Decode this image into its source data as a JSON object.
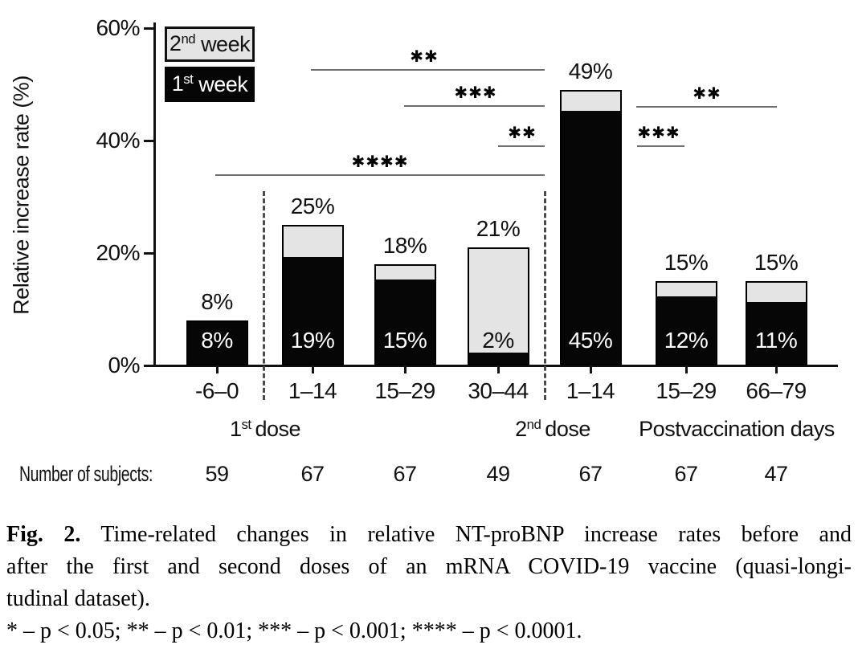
{
  "figure": {
    "ylabel": "Relative increase rate (%)",
    "legend": {
      "second_week": {
        "base": "2",
        "sup": "nd",
        "rest": "week",
        "fill": "#e4e4e4"
      },
      "first_week": {
        "base": "1",
        "sup": "st",
        "rest": "week",
        "fill": "#060606"
      }
    },
    "dose1": {
      "base": "1",
      "sup": "st",
      "rest": "dose"
    },
    "dose2": {
      "base": "2",
      "sup": "nd",
      "rest": "dose"
    },
    "postvaccination_label": "Postvaccination days",
    "subjects_label": "Number of subjects:"
  },
  "chart_data": {
    "type": "bar",
    "stacked": true,
    "title": "",
    "xlabel": "",
    "ylabel": "Relative increase rate (%)",
    "ylim": [
      0,
      60
    ],
    "grid": false,
    "legend_position": "top-left",
    "yticks": [
      {
        "value": 0,
        "label": "0%"
      },
      {
        "value": 20,
        "label": "20%"
      },
      {
        "value": 40,
        "label": "40%"
      },
      {
        "value": 60,
        "label": "60%"
      }
    ],
    "categories": [
      "-6–0",
      "1–14",
      "15–29",
      "30–44",
      "1–14",
      "15–29",
      "66–79"
    ],
    "group_labels": [
      "1st dose",
      "2nd dose",
      "Postvaccination days"
    ],
    "series": [
      {
        "name": "1st week",
        "color": "#060606",
        "values": [
          8,
          19,
          15,
          2,
          45,
          12,
          11
        ]
      },
      {
        "name": "2nd week",
        "color": "#e4e4e4",
        "values": [
          0,
          6,
          3,
          19,
          4,
          3,
          4
        ]
      }
    ],
    "totals": [
      8,
      25,
      18,
      21,
      49,
      15,
      15
    ],
    "total_labels": [
      "8%",
      "25%",
      "18%",
      "21%",
      "49%",
      "15%",
      "15%"
    ],
    "inner_labels": [
      "8%",
      "19%",
      "15%",
      "2%",
      "45%",
      "12%",
      "11%"
    ],
    "number_of_subjects": [
      "59",
      "67",
      "67",
      "49",
      "67",
      "67",
      "47"
    ],
    "significance": [
      {
        "label": "**",
        "from_bar": 1,
        "to_bar": 4
      },
      {
        "label": "***",
        "from_bar": 2,
        "to_bar": 4
      },
      {
        "label": "**",
        "from_bar": 3,
        "to_bar": 4
      },
      {
        "label": "****",
        "from_bar": 0,
        "to_bar": 4
      },
      {
        "label": "**",
        "from_bar": 4,
        "to_bar": 6
      },
      {
        "label": "***",
        "from_bar": 4,
        "to_bar": 5
      }
    ]
  },
  "caption": {
    "fig_label": "Fig. 2.",
    "line1_rest": "Time-related changes in relative NT-proBNP increase rates before and",
    "line2": "after the first and second doses of an mRNA COVID-19 vaccine (quasi-longi-",
    "line3": "tudinal dataset).",
    "sig_key": "* – p < 0.05; ** – p < 0.01; *** – p < 0.001; **** – p < 0.0001."
  }
}
